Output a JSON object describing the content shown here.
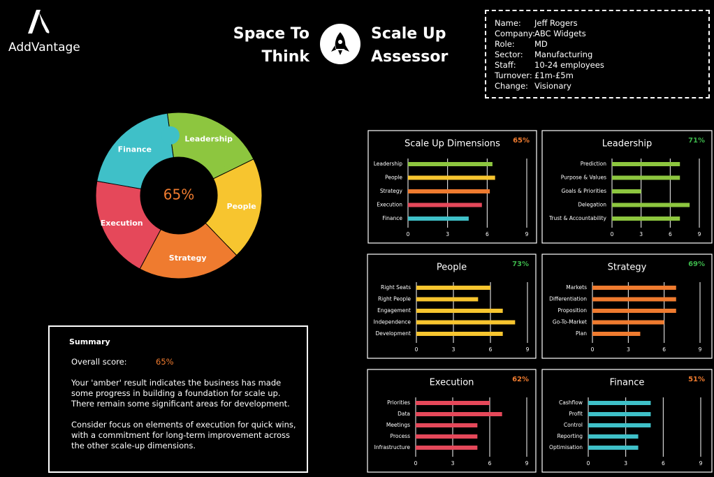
{
  "brand": "AddVantage",
  "header": {
    "title_left": [
      "Space To",
      "Think"
    ],
    "title_right": [
      "Scale Up",
      "Assessor"
    ]
  },
  "profile": [
    {
      "label": "Name:",
      "value": "Jeff Rogers"
    },
    {
      "label": "Company:",
      "value": "ABC Widgets"
    },
    {
      "label": "Role:",
      "value": "MD"
    },
    {
      "label": "Sector:",
      "value": "Manufacturing"
    },
    {
      "label": "Staff:",
      "value": "10-24 employees"
    },
    {
      "label": "Turnover:",
      "value": "£1m-£5m"
    },
    {
      "label": "Change:",
      "value": "Visionary"
    }
  ],
  "donut": {
    "center_label": "65%",
    "center_color": "#ef7b2f",
    "segments": [
      {
        "label": "Leadership",
        "color": "#8dc63f"
      },
      {
        "label": "People",
        "color": "#f7c52f"
      },
      {
        "label": "Strategy",
        "color": "#ef7b2f"
      },
      {
        "label": "Execution",
        "color": "#e5485a"
      },
      {
        "label": "Finance",
        "color": "#3fc0c8"
      }
    ]
  },
  "summary": {
    "heading": "Summary",
    "score_label": "Overall score:",
    "score": "65%",
    "score_color": "#ef7b2f",
    "paragraphs": [
      "Your 'amber' result indicates the business has made some progress in building a foundation for scale up. There remain some significant areas for development.",
      "Consider focus on elements of execution for quick wins, with a commitment for long-term improvement across the other scale-up dimensions."
    ]
  },
  "chart_data": [
    {
      "type": "hbar",
      "title": "Scale Up Dimensions",
      "score": "65%",
      "score_color": "#ef7b2f",
      "categories": [
        "Leadership",
        "People",
        "Strategy",
        "Execution",
        "Finance"
      ],
      "values": [
        6.4,
        6.6,
        6.2,
        5.6,
        4.6
      ],
      "colors": [
        "#8dc63f",
        "#f7c52f",
        "#ef7b2f",
        "#e5485a",
        "#3fc0c8"
      ],
      "xlim": [
        0,
        9
      ],
      "xticks": [
        0,
        3,
        6,
        9
      ],
      "grid": true
    },
    {
      "type": "hbar",
      "title": "Leadership",
      "score": "71%",
      "score_color": "#3cb54a",
      "categories": [
        "Prediction",
        "Purpose & Values",
        "Goals & Priorities",
        "Delegation",
        "Trust & Accountability"
      ],
      "values": [
        7,
        7,
        3,
        8,
        7
      ],
      "color": "#8dc63f",
      "xlim": [
        0,
        9
      ],
      "xticks": [
        0,
        3,
        6,
        9
      ],
      "grid": true
    },
    {
      "type": "hbar",
      "title": "People",
      "score": "73%",
      "score_color": "#3cb54a",
      "categories": [
        "Right Seats",
        "Right People",
        "Engagement",
        "Independence",
        "Development"
      ],
      "values": [
        6,
        5,
        7,
        8,
        7
      ],
      "color": "#f7c52f",
      "xlim": [
        0,
        9
      ],
      "xticks": [
        0,
        3,
        6,
        9
      ],
      "grid": true
    },
    {
      "type": "hbar",
      "title": "Strategy",
      "score": "69%",
      "score_color": "#3cb54a",
      "categories": [
        "Markets",
        "Differentiation",
        "Proposition",
        "Go-To-Market",
        "Plan"
      ],
      "values": [
        7,
        7,
        7,
        6,
        4
      ],
      "color": "#ef7b2f",
      "xlim": [
        0,
        9
      ],
      "xticks": [
        0,
        3,
        6,
        9
      ],
      "grid": true
    },
    {
      "type": "hbar",
      "title": "Execution",
      "score": "62%",
      "score_color": "#ef7b2f",
      "categories": [
        "Priorities",
        "Data",
        "Meetings",
        "Process",
        "Infrastructure"
      ],
      "values": [
        6,
        7,
        5,
        5,
        5
      ],
      "color": "#e5485a",
      "xlim": [
        0,
        9
      ],
      "xticks": [
        0,
        3,
        6,
        9
      ],
      "grid": true
    },
    {
      "type": "hbar",
      "title": "Finance",
      "score": "51%",
      "score_color": "#ef7b2f",
      "categories": [
        "Cashflow",
        "Profit",
        "Control",
        "Reporting",
        "Optimisation"
      ],
      "values": [
        5,
        5,
        5,
        4,
        4
      ],
      "color": "#3fc0c8",
      "xlim": [
        0,
        9
      ],
      "xticks": [
        0,
        3,
        6,
        9
      ],
      "grid": true
    }
  ]
}
